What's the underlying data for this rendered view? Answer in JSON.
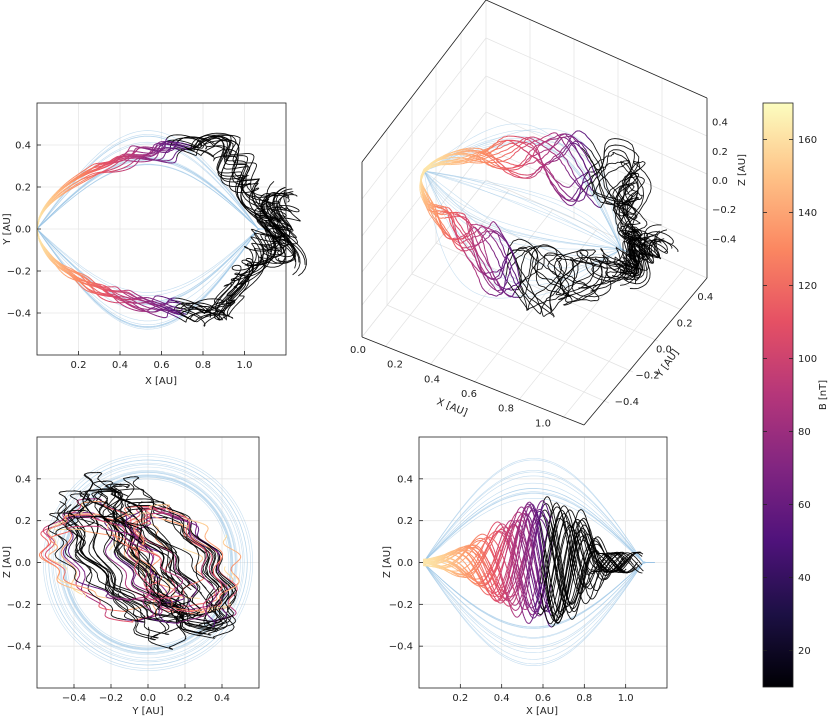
{
  "chart_data": [
    {
      "type": "line",
      "panel": "top-left",
      "projection": "x-y",
      "xlabel": "X [AU]",
      "ylabel": "Y [AU]",
      "xlim": [
        0.0,
        1.2
      ],
      "ylim": [
        -0.6,
        0.6
      ],
      "xticks": [
        "0.2",
        "0.4",
        "0.6",
        "0.8",
        "1.0"
      ],
      "yticks": [
        "−0.4",
        "−0.2",
        "0.0",
        "0.2",
        "0.4"
      ],
      "grid": true,
      "description_series": "≈30 field-line traces forming a loop from the origin out to X≈1.1 AU, lobe extent Y≈±0.45 AU, colored by B"
    },
    {
      "type": "line",
      "panel": "top-right",
      "projection": "3d",
      "xlabel": "X [AU]",
      "ylabel": "Y [AU]",
      "zlabel": "Z [AU]",
      "xticks": [
        "0.0",
        "0.2",
        "0.4",
        "0.6",
        "0.8",
        "1.0"
      ],
      "yticks": [
        "−0.4",
        "−0.2",
        "0.0",
        "0.2",
        "0.4"
      ],
      "zticks": [
        "−0.4",
        "−0.2",
        "0.0",
        "0.2",
        "0.4"
      ],
      "grid": true
    },
    {
      "type": "line",
      "panel": "bottom-left",
      "projection": "y-z",
      "xlabel": "Y [AU]",
      "ylabel": "Z [AU]",
      "xlim": [
        -0.6,
        0.6
      ],
      "ylim": [
        -0.6,
        0.6
      ],
      "xticks": [
        "−0.4",
        "−0.2",
        "0.0",
        "0.2",
        "0.4"
      ],
      "yticks": [
        "−0.4",
        "−0.2",
        "0.0",
        "0.2",
        "0.4"
      ],
      "grid": true
    },
    {
      "type": "line",
      "panel": "bottom-right",
      "projection": "x-z",
      "xlabel": "X [AU]",
      "ylabel": "Z [AU]",
      "xlim": [
        0.0,
        1.2
      ],
      "ylim": [
        -0.6,
        0.6
      ],
      "xticks": [
        "0.2",
        "0.4",
        "0.6",
        "0.8",
        "1.0"
      ],
      "yticks": [
        "−0.4",
        "−0.2",
        "0.0",
        "0.2",
        "0.4"
      ],
      "grid": true
    }
  ],
  "colorbar": {
    "label": "B [nT]",
    "range": [
      10,
      170
    ],
    "ticks": [
      "20",
      "40",
      "60",
      "80",
      "100",
      "120",
      "140",
      "160"
    ],
    "colormap": "magma",
    "colors": [
      "#000004",
      "#1c1044",
      "#4f127b",
      "#812581",
      "#b5367a",
      "#e55064",
      "#fb8761",
      "#fec287",
      "#fcfdbf"
    ]
  },
  "style": {
    "trace_color": "#000000",
    "envelope_color": "#9cc7e6",
    "grid_color": "#e6e6e6"
  }
}
